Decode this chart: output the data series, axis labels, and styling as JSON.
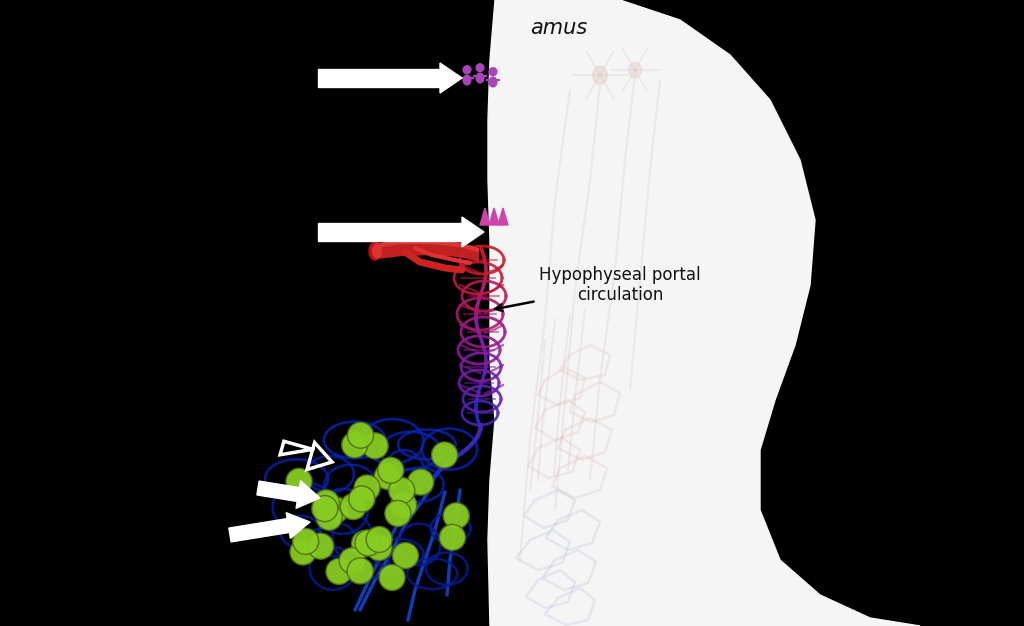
{
  "background_color": "#000000",
  "annotation_text": "Hypophyseal portal\ncirculation",
  "portal_label_color": "#111111",
  "gnrh_neuron_color": "#aa44bb",
  "lhfsh_cell_color": "#88cc22",
  "vessel_color_top": "#cc2222",
  "vessel_color_mid": "#8833aa",
  "vessel_color_bot": "#1144cc",
  "arrow_color": "#ffffff",
  "spike_color": "#cc44aa",
  "white_blob_color": "#f5f5f5",
  "faint_neuron_color": "#e8c8c0",
  "faint_line_color": "#c8b4b8",
  "faint_blue_color": "#b8c0d8"
}
